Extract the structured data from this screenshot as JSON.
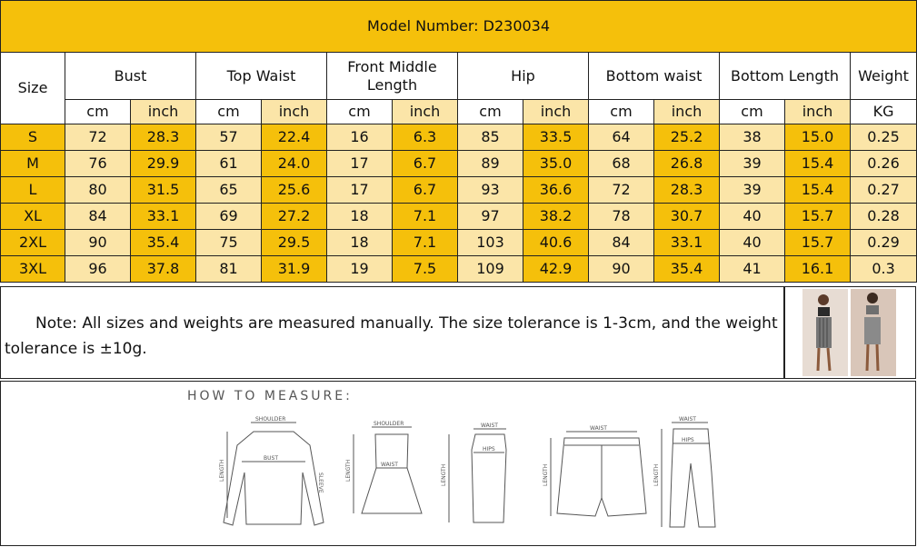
{
  "title": "Model Number: D230034",
  "headers": {
    "size": "Size",
    "bust": "Bust",
    "top_waist": "Top Waist",
    "front_middle_length": "Front Middle Length",
    "hip": "Hip",
    "bottom_waist": "Bottom waist",
    "bottom_length": "Bottom Length",
    "weight": "Weight"
  },
  "units": [
    "cm",
    "inch",
    "cm",
    "inch",
    "cm",
    "inch",
    "cm",
    "inch",
    "cm",
    "inch",
    "cm",
    "inch",
    "KG"
  ],
  "rows": [
    {
      "size": "S",
      "cells": [
        "72",
        "28.3",
        "57",
        "22.4",
        "16",
        "6.3",
        "85",
        "33.5",
        "64",
        "25.2",
        "38",
        "15.0",
        "0.25"
      ]
    },
    {
      "size": "M",
      "cells": [
        "76",
        "29.9",
        "61",
        "24.0",
        "17",
        "6.7",
        "89",
        "35.0",
        "68",
        "26.8",
        "39",
        "15.4",
        "0.26"
      ]
    },
    {
      "size": "L",
      "cells": [
        "80",
        "31.5",
        "65",
        "25.6",
        "17",
        "6.7",
        "93",
        "36.6",
        "72",
        "28.3",
        "39",
        "15.4",
        "0.27"
      ]
    },
    {
      "size": "XL",
      "cells": [
        "84",
        "33.1",
        "69",
        "27.2",
        "18",
        "7.1",
        "97",
        "38.2",
        "78",
        "30.7",
        "40",
        "15.7",
        "0.28"
      ]
    },
    {
      "size": "2XL",
      "cells": [
        "90",
        "35.4",
        "75",
        "29.5",
        "18",
        "7.1",
        "103",
        "40.6",
        "84",
        "33.1",
        "40",
        "15.7",
        "0.29"
      ]
    },
    {
      "size": "3XL",
      "cells": [
        "96",
        "37.8",
        "81",
        "31.9",
        "19",
        "7.5",
        "109",
        "42.9",
        "90",
        "35.4",
        "41",
        "16.1",
        "0.3"
      ]
    }
  ],
  "note": "Note: All sizes and weights are  measured manually. The size tolerance is 1-3cm, and the weight tolerance is ±10g.",
  "how_to_measure": {
    "title": "HOW TO MEASURE:",
    "labels": {
      "shoulder": "SHOULDER",
      "bust": "BUST",
      "sleeve": "SLEEVE",
      "length": "LENGTH",
      "waist": "WAIST",
      "hips": "HIPS"
    }
  },
  "colors": {
    "gold": "#f5c00b",
    "cream": "#fbe5a8",
    "border": "#222222"
  }
}
